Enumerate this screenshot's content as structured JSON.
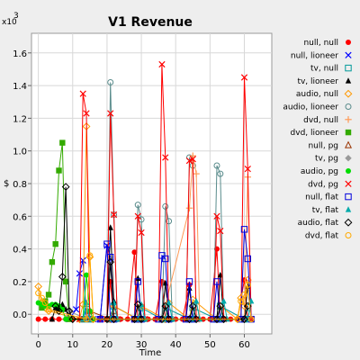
{
  "chart_data": {
    "type": "line",
    "title": "V1 Revenue",
    "xlabel": "Time",
    "ylabel": "$",
    "y_multiplier_label": "x10",
    "y_multiplier_exp": "3",
    "xlim": [
      -2,
      68
    ],
    "ylim": [
      -0.12,
      1.72
    ],
    "x_ticks": [
      0,
      10,
      20,
      30,
      40,
      50,
      60
    ],
    "y_ticks": [
      0.0,
      0.2,
      0.4,
      0.6,
      0.8,
      1.0,
      1.2,
      1.4,
      1.6
    ],
    "y_tick_labels": [
      "0.0",
      "0.2",
      "0.4",
      "0.6",
      "0.8",
      "1.0",
      "1.2",
      "1.4",
      "1.6"
    ],
    "grid": true,
    "legend_position": "right",
    "series": [
      {
        "name": "null, null",
        "color": "#ff0000",
        "marker": "dot",
        "points": [
          [
            0,
            -0.03
          ],
          [
            2,
            -0.03
          ],
          [
            4,
            -0.03
          ],
          [
            6,
            -0.03
          ],
          [
            8,
            -0.03
          ],
          [
            10,
            -0.03
          ],
          [
            12,
            -0.03
          ],
          [
            14,
            -0.03
          ],
          [
            16,
            -0.03
          ],
          [
            18,
            -0.03
          ],
          [
            20,
            -0.03
          ],
          [
            21,
            0.2
          ],
          [
            22,
            -0.03
          ],
          [
            24,
            -0.03
          ],
          [
            26,
            -0.03
          ],
          [
            28,
            0.38
          ],
          [
            29,
            -0.03
          ],
          [
            30,
            -0.03
          ],
          [
            32,
            -0.03
          ],
          [
            34,
            -0.03
          ],
          [
            36,
            0.2
          ],
          [
            37,
            -0.03
          ],
          [
            38,
            -0.03
          ],
          [
            40,
            -0.03
          ],
          [
            42,
            -0.03
          ],
          [
            44,
            0.18
          ],
          [
            45,
            -0.03
          ],
          [
            46,
            -0.03
          ],
          [
            48,
            -0.03
          ],
          [
            50,
            -0.03
          ],
          [
            52,
            0.4
          ],
          [
            53,
            -0.03
          ],
          [
            54,
            -0.03
          ],
          [
            56,
            -0.03
          ],
          [
            58,
            -0.03
          ],
          [
            60,
            0.21
          ],
          [
            61,
            -0.03
          ]
        ]
      },
      {
        "name": "null, lioneer",
        "color": "#0000ff",
        "marker": "x",
        "points": [
          [
            9,
            -0.03
          ],
          [
            11,
            0.03
          ],
          [
            12,
            0.25
          ],
          [
            13,
            0.33
          ],
          [
            14,
            -0.03
          ],
          [
            16,
            -0.03
          ],
          [
            18,
            -0.03
          ],
          [
            20,
            0.42
          ],
          [
            21,
            -0.03
          ],
          [
            22,
            -0.03
          ],
          [
            28,
            -0.03
          ],
          [
            29,
            -0.03
          ],
          [
            35,
            -0.03
          ],
          [
            36,
            -0.03
          ],
          [
            43,
            -0.03
          ],
          [
            44,
            -0.03
          ],
          [
            51,
            -0.03
          ],
          [
            52,
            -0.03
          ],
          [
            59,
            -0.03
          ],
          [
            61,
            -0.03
          ]
        ]
      },
      {
        "name": "tv, null",
        "color": "#009a9a",
        "marker": "square",
        "points": [
          [
            13,
            -0.03
          ],
          [
            14,
            0.03
          ],
          [
            15,
            -0.03
          ],
          [
            21,
            -0.03
          ],
          [
            22,
            0.05
          ],
          [
            29,
            -0.03
          ],
          [
            30,
            0.04
          ],
          [
            36,
            -0.03
          ],
          [
            37,
            0.04
          ],
          [
            44,
            -0.03
          ],
          [
            45,
            0.04
          ],
          [
            52,
            -0.03
          ],
          [
            53,
            0.05
          ],
          [
            60,
            -0.03
          ],
          [
            61,
            0.04
          ]
        ]
      },
      {
        "name": "tv, lioneer",
        "color": "#000000",
        "marker": "triangle",
        "points": [
          [
            4,
            -0.03
          ],
          [
            5,
            0.04
          ],
          [
            6,
            0.03
          ],
          [
            7,
            0.06
          ],
          [
            8,
            0.03
          ],
          [
            9,
            -0.03
          ],
          [
            20,
            -0.03
          ],
          [
            21,
            0.53
          ],
          [
            22,
            0.08
          ],
          [
            23,
            -0.03
          ],
          [
            28,
            -0.03
          ],
          [
            29,
            0.22
          ],
          [
            30,
            -0.03
          ],
          [
            36,
            -0.03
          ],
          [
            37,
            0.19
          ],
          [
            38,
            -0.03
          ],
          [
            43,
            -0.03
          ],
          [
            44,
            0.16
          ],
          [
            45,
            -0.03
          ],
          [
            52,
            -0.03
          ],
          [
            53,
            0.24
          ],
          [
            54,
            -0.03
          ],
          [
            60,
            -0.03
          ],
          [
            61,
            0.17
          ],
          [
            62,
            -0.03
          ]
        ]
      },
      {
        "name": "audio, null",
        "color": "#ff9900",
        "marker": "diamond",
        "points": [
          [
            0,
            0.17
          ],
          [
            1,
            0.07
          ],
          [
            2,
            0.04
          ],
          [
            3,
            0.02
          ],
          [
            12,
            -0.03
          ],
          [
            13,
            0.06
          ],
          [
            14,
            1.15
          ],
          [
            15,
            0.35
          ],
          [
            16,
            -0.03
          ],
          [
            21,
            -0.03
          ],
          [
            22,
            0.05
          ],
          [
            29,
            -0.03
          ],
          [
            30,
            0.05
          ],
          [
            37,
            -0.03
          ],
          [
            38,
            0.07
          ],
          [
            44,
            -0.03
          ],
          [
            45,
            0.09
          ],
          [
            52,
            -0.03
          ],
          [
            53,
            0.05
          ],
          [
            58,
            -0.03
          ],
          [
            59,
            0.1
          ],
          [
            60,
            0.05
          ],
          [
            61,
            0.21
          ]
        ]
      },
      {
        "name": "audio, lioneer",
        "color": "#5a8c8c",
        "marker": "circle",
        "points": [
          [
            20,
            -0.03
          ],
          [
            21,
            1.42
          ],
          [
            22,
            0.61
          ],
          [
            23,
            -0.03
          ],
          [
            28,
            -0.03
          ],
          [
            29,
            0.67
          ],
          [
            30,
            0.58
          ],
          [
            31,
            -0.03
          ],
          [
            36,
            -0.03
          ],
          [
            37,
            0.66
          ],
          [
            38,
            0.57
          ],
          [
            39,
            -0.03
          ],
          [
            43,
            -0.03
          ],
          [
            44,
            0.96
          ],
          [
            45,
            0.91
          ],
          [
            46,
            -0.03
          ],
          [
            51,
            -0.03
          ],
          [
            52,
            0.91
          ],
          [
            53,
            0.86
          ],
          [
            54,
            -0.03
          ]
        ]
      },
      {
        "name": "dvd, null",
        "color": "#ff9955",
        "marker": "plus",
        "points": [
          [
            36,
            -0.03
          ],
          [
            44,
            0.65
          ],
          [
            45,
            0.97
          ],
          [
            46,
            0.86
          ],
          [
            47,
            -0.03
          ],
          [
            60,
            -0.03
          ],
          [
            61,
            0.84
          ],
          [
            62,
            -0.03
          ]
        ]
      },
      {
        "name": "dvd, lioneer",
        "color": "#33aa00",
        "marker": "fsquare",
        "points": [
          [
            1,
            0.04
          ],
          [
            2,
            0.08
          ],
          [
            3,
            0.12
          ],
          [
            4,
            0.32
          ],
          [
            5,
            0.43
          ],
          [
            6,
            0.88
          ],
          [
            7,
            1.05
          ],
          [
            8,
            0.2
          ],
          [
            9,
            -0.03
          ]
        ]
      },
      {
        "name": "null, pg",
        "color": "#993300",
        "marker": "triangle-open",
        "points": [
          [
            14,
            -0.03
          ],
          [
            15,
            0.02
          ],
          [
            21,
            -0.03
          ],
          [
            22,
            0.02
          ]
        ]
      },
      {
        "name": "tv, pg",
        "color": "#999999",
        "marker": "fdiamond",
        "points": [
          [
            8,
            -0.03
          ],
          [
            9,
            0.02
          ],
          [
            14,
            -0.03
          ],
          [
            15,
            0.02
          ]
        ]
      },
      {
        "name": "audio, pg",
        "color": "#00dd00",
        "marker": "fcircle",
        "points": [
          [
            0,
            0.07
          ],
          [
            1,
            0.06
          ],
          [
            2,
            0.05
          ],
          [
            3,
            0.05
          ],
          [
            4,
            0.06
          ],
          [
            5,
            0.06
          ],
          [
            6,
            0.05
          ],
          [
            7,
            0.03
          ],
          [
            8,
            -0.03
          ],
          [
            13,
            -0.03
          ],
          [
            14,
            0.24
          ],
          [
            15,
            0.02
          ],
          [
            16,
            -0.03
          ]
        ]
      },
      {
        "name": "dvd, pg",
        "color": "#ff0000",
        "marker": "x",
        "points": [
          [
            12,
            -0.03
          ],
          [
            13,
            1.35
          ],
          [
            14,
            1.23
          ],
          [
            15,
            -0.03
          ],
          [
            20,
            -0.03
          ],
          [
            21,
            1.23
          ],
          [
            22,
            0.61
          ],
          [
            23,
            -0.03
          ],
          [
            28,
            -0.03
          ],
          [
            29,
            0.6
          ],
          [
            30,
            0.5
          ],
          [
            31,
            -0.03
          ],
          [
            35,
            -0.03
          ],
          [
            36,
            1.53
          ],
          [
            37,
            0.96
          ],
          [
            38,
            -0.03
          ],
          [
            43,
            -0.03
          ],
          [
            44,
            0.94
          ],
          [
            45,
            0.95
          ],
          [
            46,
            -0.03
          ],
          [
            51,
            -0.03
          ],
          [
            52,
            0.6
          ],
          [
            53,
            0.51
          ],
          [
            54,
            -0.03
          ],
          [
            59,
            -0.03
          ],
          [
            60,
            1.45
          ],
          [
            61,
            0.89
          ],
          [
            62,
            -0.03
          ]
        ]
      },
      {
        "name": "null, flat",
        "color": "#0000dd",
        "marker": "square",
        "points": [
          [
            18,
            -0.03
          ],
          [
            20,
            0.43
          ],
          [
            21,
            0.35
          ],
          [
            22,
            -0.03
          ],
          [
            28,
            -0.03
          ],
          [
            29,
            0.2
          ],
          [
            30,
            -0.03
          ],
          [
            35,
            -0.03
          ],
          [
            36,
            0.36
          ],
          [
            37,
            0.34
          ],
          [
            38,
            -0.03
          ],
          [
            43,
            -0.03
          ],
          [
            44,
            0.2
          ],
          [
            45,
            -0.03
          ],
          [
            51,
            -0.03
          ],
          [
            52,
            0.2
          ],
          [
            53,
            -0.03
          ],
          [
            59,
            -0.03
          ],
          [
            60,
            0.52
          ],
          [
            61,
            0.34
          ],
          [
            62,
            -0.03
          ]
        ]
      },
      {
        "name": "tv, flat",
        "color": "#00aaaa",
        "marker": "ftriangle",
        "points": [
          [
            13,
            -0.03
          ],
          [
            14,
            0.07
          ],
          [
            15,
            -0.03
          ],
          [
            21,
            -0.03
          ],
          [
            22,
            0.07
          ],
          [
            23,
            -0.03
          ],
          [
            29,
            -0.03
          ],
          [
            30,
            0.06
          ],
          [
            31,
            -0.03
          ],
          [
            37,
            -0.03
          ],
          [
            38,
            0.07
          ],
          [
            39,
            -0.03
          ],
          [
            45,
            -0.03
          ],
          [
            46,
            0.08
          ],
          [
            47,
            -0.03
          ],
          [
            53,
            -0.03
          ],
          [
            54,
            0.08
          ],
          [
            55,
            -0.03
          ],
          [
            61,
            -0.03
          ],
          [
            62,
            0.08
          ]
        ]
      },
      {
        "name": "audio, flat",
        "color": "#000000",
        "marker": "diamond",
        "points": [
          [
            5,
            0.05
          ],
          [
            6,
            0.02
          ],
          [
            7,
            0.23
          ],
          [
            8,
            0.78
          ],
          [
            9,
            0.02
          ],
          [
            10,
            -0.03
          ],
          [
            20,
            -0.03
          ],
          [
            21,
            0.32
          ],
          [
            22,
            -0.03
          ],
          [
            28,
            -0.03
          ],
          [
            29,
            0.06
          ],
          [
            30,
            -0.03
          ],
          [
            36,
            -0.03
          ],
          [
            37,
            0.05
          ],
          [
            38,
            -0.03
          ],
          [
            44,
            -0.03
          ],
          [
            45,
            0.05
          ],
          [
            46,
            -0.03
          ],
          [
            52,
            -0.03
          ],
          [
            53,
            0.05
          ],
          [
            54,
            -0.03
          ],
          [
            60,
            -0.03
          ],
          [
            61,
            0.05
          ]
        ]
      },
      {
        "name": "dvd, flat",
        "color": "#ffaa00",
        "marker": "circle",
        "points": [
          [
            0,
            0.13
          ],
          [
            1,
            0.1
          ],
          [
            2,
            0.07
          ],
          [
            3,
            0.03
          ],
          [
            14,
            -0.03
          ],
          [
            15,
            0.36
          ],
          [
            16,
            -0.03
          ],
          [
            58,
            -0.03
          ],
          [
            59,
            0.08
          ],
          [
            60,
            0.12
          ],
          [
            61,
            0.18
          ],
          [
            62,
            -0.03
          ]
        ]
      }
    ]
  }
}
